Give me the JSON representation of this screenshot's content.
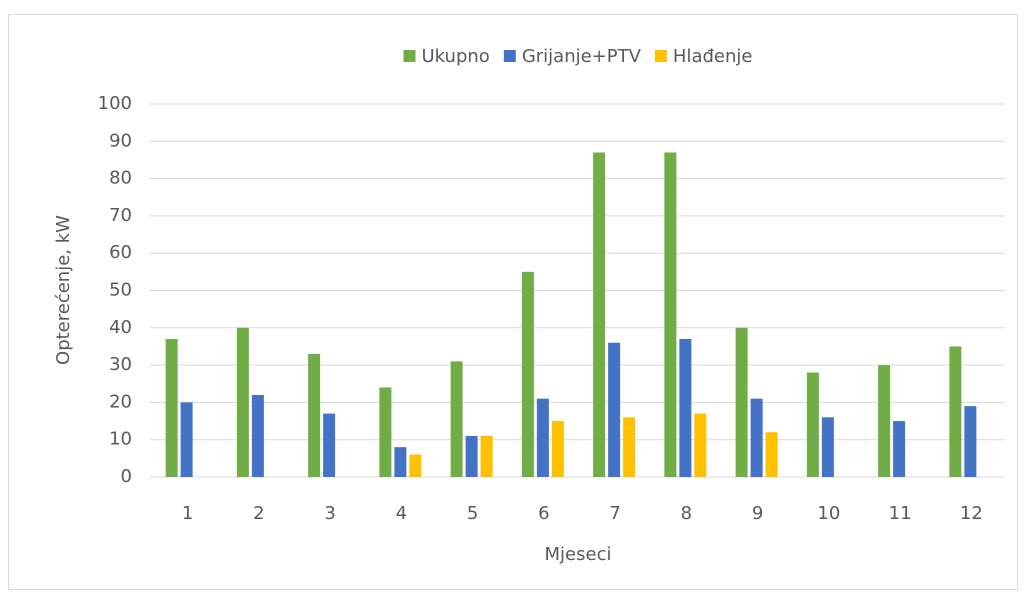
{
  "chart_data": {
    "type": "bar",
    "y_label": "Opterećenje, kW",
    "x_label": "Mjeseci",
    "categories": [
      "1",
      "2",
      "3",
      "4",
      "5",
      "6",
      "7",
      "8",
      "9",
      "10",
      "11",
      "12"
    ],
    "series": [
      {
        "name": "Ukupno",
        "color": "#70ad47",
        "values": [
          37,
          40,
          33,
          24,
          31,
          55,
          87,
          87,
          40,
          28,
          30,
          35
        ]
      },
      {
        "name": "Grijanje+PTV",
        "color": "#4472c4",
        "values": [
          20,
          22,
          17,
          8,
          11,
          21,
          36,
          37,
          21,
          16,
          15,
          19
        ]
      },
      {
        "name": "Hlađenje",
        "color": "#ffc000",
        "values": [
          0,
          0,
          0,
          6,
          11,
          15,
          16,
          17,
          12,
          0,
          0,
          0
        ]
      }
    ],
    "ylim": [
      0,
      100
    ],
    "yticks": [
      0,
      10,
      20,
      30,
      40,
      50,
      60,
      70,
      80,
      90,
      100
    ],
    "grid": true,
    "legend": "top"
  }
}
